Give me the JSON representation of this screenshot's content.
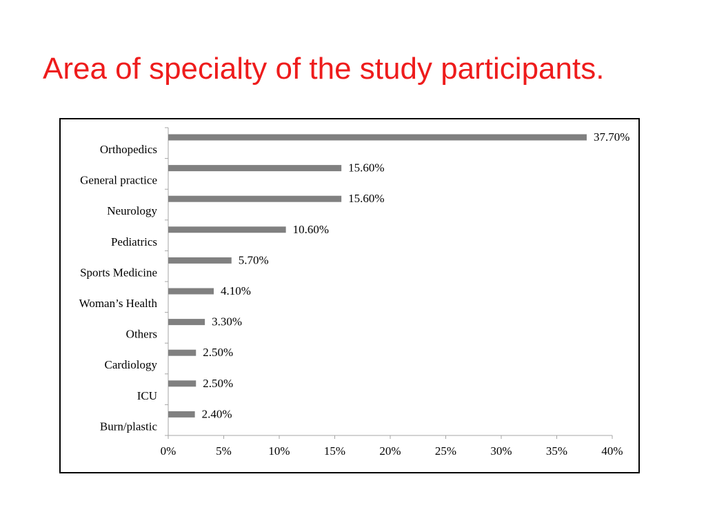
{
  "slide": {
    "title": "Area of specialty of the study participants.",
    "title_color": "#ee1c1c"
  },
  "chart_data": {
    "type": "bar",
    "orientation": "horizontal",
    "title": "",
    "xlabel": "",
    "ylabel": "",
    "categories": [
      "Orthopedics",
      "General practice",
      "Neurology",
      "Pediatrics",
      "Sports Medicine",
      "Woman’s Health",
      "Others",
      "Cardiology",
      "ICU",
      "Burn/plastic"
    ],
    "values": [
      37.7,
      15.6,
      15.6,
      10.6,
      5.7,
      4.1,
      3.3,
      2.5,
      2.5,
      2.4
    ],
    "value_labels": [
      "37.70%",
      "15.60%",
      "15.60%",
      "10.60%",
      "5.70%",
      "4.10%",
      "3.30%",
      "2.50%",
      "2.50%",
      "2.40%"
    ],
    "xlim": [
      0,
      40
    ],
    "x_ticks": [
      0,
      5,
      10,
      15,
      20,
      25,
      30,
      35,
      40
    ],
    "x_tick_labels": [
      "0%",
      "5%",
      "10%",
      "15%",
      "20%",
      "25%",
      "30%",
      "35%",
      "40%"
    ],
    "grid": false,
    "legend": "none",
    "bar_color": "#808080",
    "axis_color": "#a6a6a6"
  }
}
